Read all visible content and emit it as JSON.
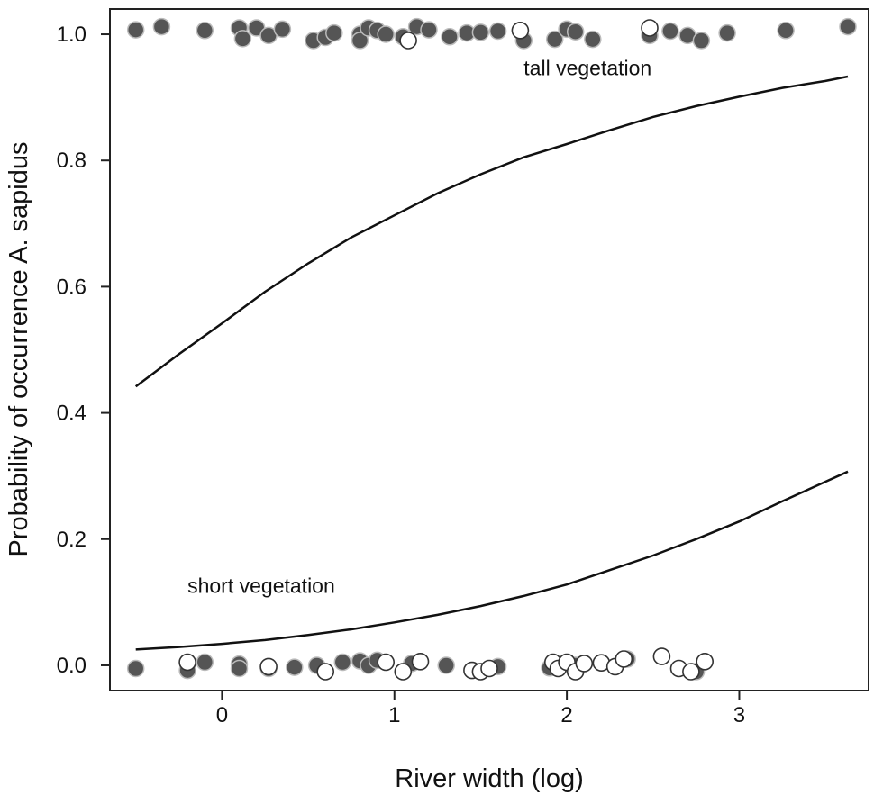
{
  "chart_data": {
    "type": "scatter",
    "title": "",
    "xlabel": "River width (log)",
    "ylabel": "Probability of occurrence A. sapidus",
    "xlim": [
      -0.65,
      3.75
    ],
    "ylim": [
      -0.04,
      1.04
    ],
    "x_ticks": [
      0,
      1,
      2,
      3
    ],
    "x_tick_labels": [
      "0",
      "1",
      "2",
      "3"
    ],
    "y_ticks": [
      0,
      0.2,
      0.4,
      0.6,
      0.8,
      1.0
    ],
    "y_tick_labels": [
      "0.0",
      "0.2",
      "0.4",
      "0.6",
      "0.8",
      "1.0"
    ],
    "grid": false,
    "legend": "none",
    "annotations": [
      {
        "text": "tall vegetation",
        "x": 1.75,
        "y": 0.935
      },
      {
        "text": "short vegetation",
        "x": -0.2,
        "y": 0.115
      }
    ],
    "curves": [
      {
        "name": "tall vegetation",
        "color": "#111111",
        "x": [
          -0.5,
          -0.25,
          0,
          0.25,
          0.5,
          0.75,
          1,
          1.25,
          1.5,
          1.75,
          2,
          2.25,
          2.5,
          2.75,
          3,
          3.25,
          3.5,
          3.63
        ],
        "y": [
          0.442,
          0.493,
          0.542,
          0.592,
          0.637,
          0.678,
          0.713,
          0.748,
          0.778,
          0.805,
          0.826,
          0.848,
          0.869,
          0.886,
          0.901,
          0.915,
          0.926,
          0.933
        ]
      },
      {
        "name": "short vegetation",
        "color": "#111111",
        "x": [
          -0.5,
          -0.25,
          0,
          0.25,
          0.5,
          0.75,
          1,
          1.25,
          1.5,
          1.75,
          2,
          2.25,
          2.5,
          2.75,
          3,
          3.25,
          3.5,
          3.63
        ],
        "y": [
          0.025,
          0.029,
          0.034,
          0.04,
          0.048,
          0.057,
          0.068,
          0.08,
          0.094,
          0.11,
          0.128,
          0.151,
          0.174,
          0.2,
          0.228,
          0.26,
          0.291,
          0.307
        ]
      }
    ],
    "series": [
      {
        "name": "",
        "marker": "filled",
        "color": "#555555",
        "points": [
          [
            -0.5,
            1.007
          ],
          [
            -0.35,
            1.012
          ],
          [
            -0.1,
            1.006
          ],
          [
            0.1,
            1.01
          ],
          [
            0.12,
            0.993
          ],
          [
            0.2,
            1.01
          ],
          [
            0.27,
            0.998
          ],
          [
            0.35,
            1.008
          ],
          [
            0.53,
            0.99
          ],
          [
            0.6,
            0.995
          ],
          [
            0.65,
            1.002
          ],
          [
            0.8,
            1.0
          ],
          [
            0.8,
            0.99
          ],
          [
            0.85,
            1.01
          ],
          [
            0.9,
            1.006
          ],
          [
            0.95,
            1.0
          ],
          [
            1.05,
            0.996
          ],
          [
            1.13,
            1.012
          ],
          [
            1.2,
            1.007
          ],
          [
            1.32,
            0.996
          ],
          [
            1.42,
            1.002
          ],
          [
            1.5,
            1.003
          ],
          [
            1.6,
            1.005
          ],
          [
            1.75,
            0.99
          ],
          [
            1.93,
            0.992
          ],
          [
            2.0,
            1.008
          ],
          [
            2.05,
            1.004
          ],
          [
            2.15,
            0.992
          ],
          [
            2.48,
            0.998
          ],
          [
            2.6,
            1.005
          ],
          [
            2.7,
            0.998
          ],
          [
            2.78,
            0.99
          ],
          [
            2.93,
            1.002
          ],
          [
            3.27,
            1.006
          ],
          [
            3.63,
            1.012
          ],
          [
            -0.5,
            -0.005
          ],
          [
            -0.2,
            -0.008
          ],
          [
            -0.1,
            0.005
          ],
          [
            0.1,
            0.002
          ],
          [
            0.1,
            -0.005
          ],
          [
            0.27,
            -0.005
          ],
          [
            0.42,
            -0.003
          ],
          [
            0.55,
            0.0
          ],
          [
            0.7,
            0.005
          ],
          [
            0.8,
            0.007
          ],
          [
            0.85,
            0.0
          ],
          [
            0.9,
            0.008
          ],
          [
            1.1,
            0.003
          ],
          [
            1.3,
            0.0
          ],
          [
            1.6,
            -0.002
          ],
          [
            1.9,
            -0.004
          ],
          [
            2.05,
            0.0
          ],
          [
            2.35,
            0.01
          ],
          [
            2.75,
            -0.01
          ]
        ]
      },
      {
        "name": "",
        "marker": "open",
        "color": "#333333",
        "points": [
          [
            1.08,
            0.99
          ],
          [
            1.73,
            1.006
          ],
          [
            2.48,
            1.01
          ],
          [
            -0.2,
            0.005
          ],
          [
            0.27,
            -0.002
          ],
          [
            0.6,
            -0.01
          ],
          [
            0.95,
            0.005
          ],
          [
            1.05,
            -0.01
          ],
          [
            1.15,
            0.006
          ],
          [
            1.45,
            -0.008
          ],
          [
            1.5,
            -0.01
          ],
          [
            1.55,
            -0.005
          ],
          [
            1.92,
            0.005
          ],
          [
            1.95,
            -0.005
          ],
          [
            2.0,
            0.005
          ],
          [
            2.05,
            -0.01
          ],
          [
            2.1,
            0.003
          ],
          [
            2.2,
            0.004
          ],
          [
            2.28,
            -0.002
          ],
          [
            2.33,
            0.01
          ],
          [
            2.55,
            0.014
          ],
          [
            2.65,
            -0.005
          ],
          [
            2.72,
            -0.01
          ],
          [
            2.8,
            0.006
          ]
        ]
      }
    ]
  }
}
